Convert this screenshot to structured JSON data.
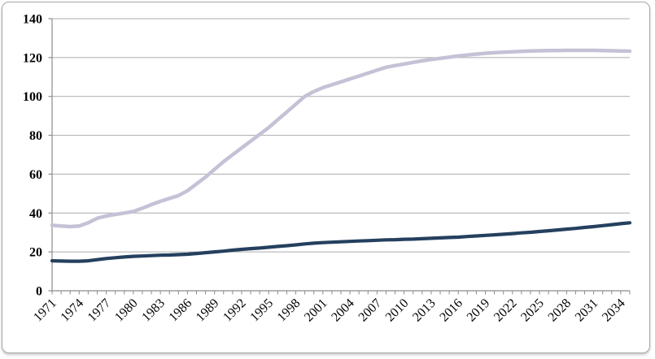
{
  "chart_data": {
    "type": "line",
    "title": "",
    "xlabel": "",
    "ylabel": "",
    "legend": "none",
    "grid": "horizontal",
    "ylim": [
      0,
      140
    ],
    "ytick_interval": 20,
    "ytick_labels": [
      "0",
      "20",
      "40",
      "60",
      "80",
      "100",
      "120",
      "140"
    ],
    "xtick_labels": [
      "1971",
      "1974",
      "1977",
      "1980",
      "1983",
      "1986",
      "1989",
      "1992",
      "1995",
      "1998",
      "2001",
      "2004",
      "2007",
      "2010",
      "2013",
      "2016",
      "2019",
      "2022",
      "2025",
      "2028",
      "2031",
      "2034"
    ],
    "xtick_label_interval_years": 3,
    "minor_xticks_every_year": true,
    "x": [
      1971,
      1972,
      1973,
      1974,
      1975,
      1976,
      1977,
      1978,
      1979,
      1980,
      1981,
      1982,
      1983,
      1984,
      1985,
      1986,
      1987,
      1988,
      1989,
      1990,
      1991,
      1992,
      1993,
      1994,
      1995,
      1996,
      1997,
      1998,
      1999,
      2000,
      2001,
      2002,
      2003,
      2004,
      2005,
      2006,
      2007,
      2008,
      2009,
      2010,
      2011,
      2012,
      2013,
      2014,
      2015,
      2016,
      2017,
      2018,
      2019,
      2020,
      2021,
      2022,
      2023,
      2024,
      2025,
      2026,
      2027,
      2028,
      2029,
      2030,
      2031,
      2032,
      2033,
      2034,
      2035
    ],
    "series": [
      {
        "name": "upper-light-purple-line",
        "color": "#c6c1d6",
        "stroke_width": 4.5,
        "values": [
          33.7,
          33.3,
          33.0,
          33.3,
          35.0,
          37.3,
          38.5,
          39.3,
          40.0,
          40.8,
          42.5,
          44.3,
          46.0,
          47.5,
          49.0,
          51.5,
          55.0,
          58.5,
          62.5,
          66.5,
          70.0,
          73.5,
          77.0,
          80.5,
          84.0,
          88.0,
          92.0,
          96.0,
          100.0,
          102.5,
          104.5,
          106.0,
          107.5,
          109.0,
          110.5,
          112.0,
          113.5,
          115.0,
          115.9,
          116.7,
          117.5,
          118.3,
          119.0,
          119.6,
          120.2,
          120.8,
          121.3,
          121.8,
          122.2,
          122.5,
          122.8,
          123.0,
          123.2,
          123.4,
          123.5,
          123.6,
          123.6,
          123.7,
          123.7,
          123.7,
          123.7,
          123.6,
          123.5,
          123.4,
          123.3
        ]
      },
      {
        "name": "lower-dark-navy-line",
        "color": "#25405e",
        "stroke_width": 4.2,
        "values": [
          15.4,
          15.3,
          15.2,
          15.2,
          15.4,
          16.0,
          16.6,
          17.0,
          17.4,
          17.7,
          17.9,
          18.1,
          18.3,
          18.4,
          18.6,
          18.8,
          19.2,
          19.6,
          20.0,
          20.4,
          20.9,
          21.3,
          21.7,
          22.0,
          22.4,
          22.8,
          23.2,
          23.6,
          24.1,
          24.5,
          24.8,
          25.0,
          25.2,
          25.4,
          25.6,
          25.8,
          26.0,
          26.2,
          26.3,
          26.5,
          26.6,
          26.8,
          27.0,
          27.2,
          27.4,
          27.6,
          27.9,
          28.2,
          28.5,
          28.8,
          29.1,
          29.4,
          29.8,
          30.1,
          30.5,
          30.9,
          31.3,
          31.7,
          32.1,
          32.6,
          33.0,
          33.5,
          34.0,
          34.5,
          35.0
        ]
      }
    ]
  },
  "styles": {
    "background_color": "#ffffff",
    "border_color": "#a8a8a8",
    "axis_color": "#8c8c8c",
    "gridline_color": "#ababab",
    "label_color": "#000000"
  }
}
